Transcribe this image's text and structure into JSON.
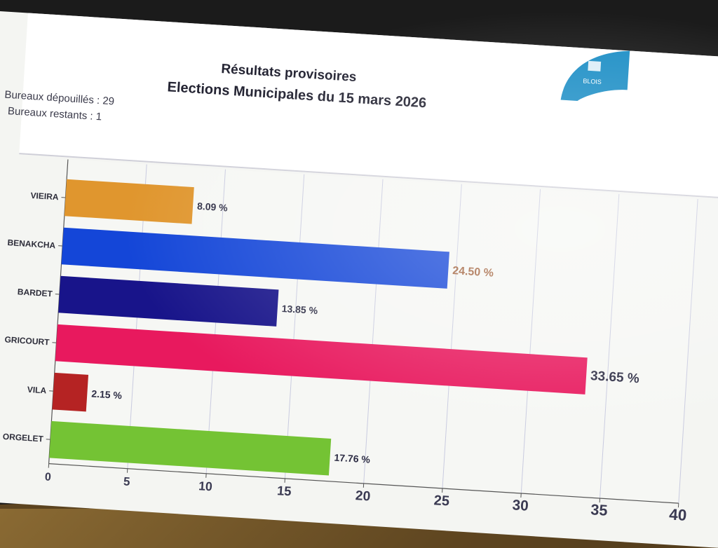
{
  "header": {
    "title_line1": "Résultats provisoires",
    "title_line2": "Elections Municipales du 15 mars 2026",
    "bureaux_depouilles": "Bureaux dépouillés : 29",
    "bureaux_restants": "Bureaux restants : 1",
    "logo_text": "BLOIS"
  },
  "chart_data": {
    "type": "bar",
    "orientation": "horizontal",
    "categories": [
      "VIEIRA",
      "BENAKCHA",
      "BARDET",
      "GRICOURT",
      "VILA",
      "ORGELET"
    ],
    "values": [
      8.09,
      24.5,
      13.85,
      33.65,
      2.15,
      17.76
    ],
    "value_labels": [
      "8.09 %",
      "24.50 %",
      "13.85 %",
      "33.65 %",
      "2.15 %",
      "17.76 %"
    ],
    "colors": [
      "#e0962e",
      "#1446d8",
      "#18148a",
      "#e8195e",
      "#b52323",
      "#74c334"
    ],
    "xlim": [
      0,
      40
    ],
    "xticks": [
      0,
      5,
      10,
      15,
      20,
      25,
      30,
      35,
      40
    ],
    "grid": true
  }
}
